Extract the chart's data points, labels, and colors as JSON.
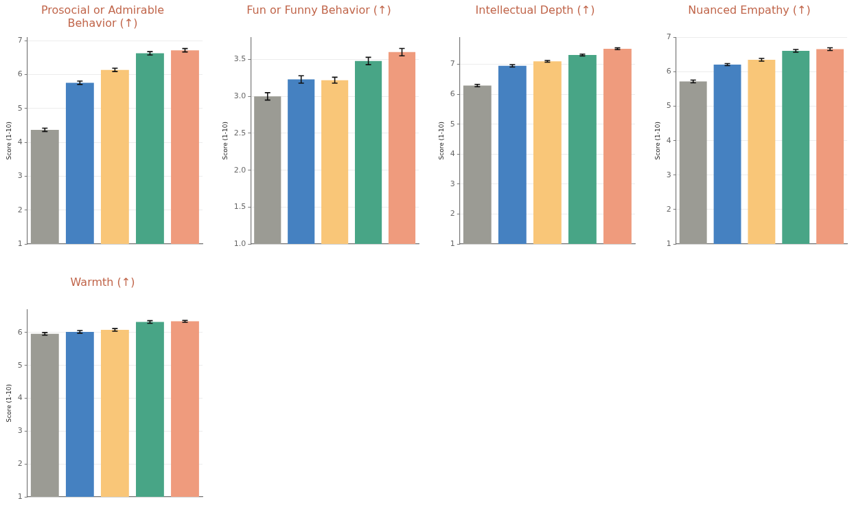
{
  "chart_data": [
    {
      "type": "bar",
      "title": "Prosocial or Admirable Behavior (↑)",
      "ylabel": "Score (1-10)",
      "categories": [
        null,
        null,
        null,
        null,
        null
      ],
      "values": [
        4.37,
        5.76,
        6.14,
        6.63,
        6.72
      ],
      "errors": [
        0.05,
        0.05,
        0.05,
        0.05,
        0.05
      ],
      "colors": [
        "#9b9b94",
        "#4581c1",
        "#f9c678",
        "#48a586",
        "#ef9b7d"
      ],
      "ylim": [
        1,
        7.1
      ],
      "yticks": [
        1,
        2,
        3,
        4,
        5,
        6,
        7
      ],
      "grid": "y",
      "legend": false
    },
    {
      "type": "bar",
      "title": "Fun or Funny Behavior (↑)",
      "ylabel": "Score (1-10)",
      "categories": [
        null,
        null,
        null,
        null,
        null
      ],
      "values": [
        3.0,
        3.23,
        3.22,
        3.48,
        3.6
      ],
      "errors": [
        0.05,
        0.05,
        0.04,
        0.05,
        0.05
      ],
      "colors": [
        "#9b9b94",
        "#4581c1",
        "#f9c678",
        "#48a586",
        "#ef9b7d"
      ],
      "ylim": [
        1,
        3.8
      ],
      "yticks": [
        {
          "value": 1,
          "label": "1.0"
        },
        {
          "value": 1.5,
          "label": "1.5"
        },
        {
          "value": 2,
          "label": "2.0"
        },
        {
          "value": 2.5,
          "label": "2.5"
        },
        {
          "value": 3,
          "label": "3.0"
        },
        {
          "value": 3.5,
          "label": "3.5"
        }
      ],
      "grid": "y",
      "legend": false
    },
    {
      "type": "bar",
      "title": "Intellectual Depth (↑)",
      "ylabel": "Score (1-10)",
      "categories": [
        null,
        null,
        null,
        null,
        null
      ],
      "values": [
        6.29,
        6.95,
        7.1,
        7.31,
        7.52
      ],
      "errors": [
        0.04,
        0.04,
        0.03,
        0.03,
        0.03
      ],
      "colors": [
        "#9b9b94",
        "#4581c1",
        "#f9c678",
        "#48a586",
        "#ef9b7d"
      ],
      "ylim": [
        1,
        7.9
      ],
      "yticks": [
        1,
        2,
        3,
        4,
        5,
        6,
        7
      ],
      "grid": "y",
      "legend": false
    },
    {
      "type": "bar",
      "title": "Nuanced Empathy (↑)",
      "ylabel": "Score (1-10)",
      "categories": [
        null,
        null,
        null,
        null,
        null
      ],
      "values": [
        5.72,
        6.21,
        6.35,
        6.61,
        6.66
      ],
      "errors": [
        0.04,
        0.03,
        0.04,
        0.04,
        0.04
      ],
      "colors": [
        "#9b9b94",
        "#4581c1",
        "#f9c678",
        "#48a586",
        "#ef9b7d"
      ],
      "ylim": [
        1,
        7.0
      ],
      "yticks": [
        1,
        2,
        3,
        4,
        5,
        6,
        7
      ],
      "grid": "y",
      "legend": false
    },
    {
      "type": "bar",
      "title": "Warmth (↑)",
      "ylabel": "Score (1-10)",
      "categories": [
        null,
        null,
        null,
        null,
        null
      ],
      "values": [
        5.96,
        6.02,
        6.08,
        6.32,
        6.34
      ],
      "errors": [
        0.04,
        0.04,
        0.04,
        0.04,
        0.03
      ],
      "colors": [
        "#9b9b94",
        "#4581c1",
        "#f9c678",
        "#48a586",
        "#ef9b7d"
      ],
      "ylim": [
        1,
        6.7
      ],
      "yticks": [
        1,
        2,
        3,
        4,
        5,
        6
      ],
      "grid": "y",
      "legend": false
    }
  ]
}
